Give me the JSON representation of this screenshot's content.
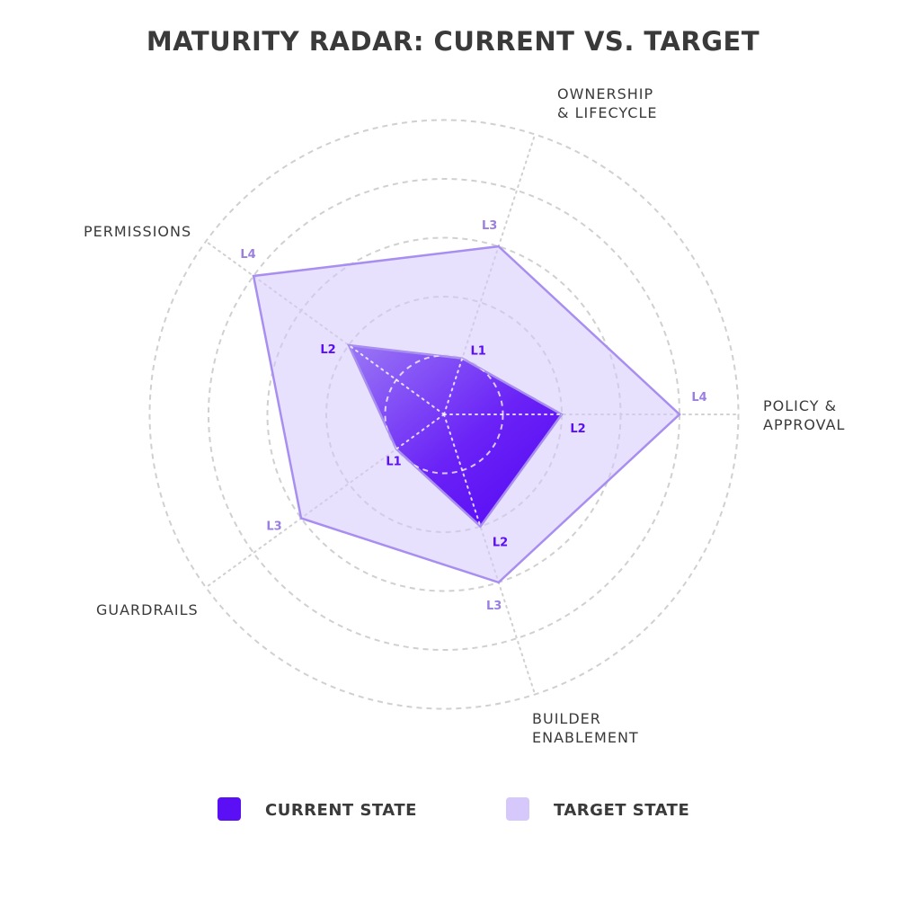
{
  "chart_data": {
    "type": "radar",
    "title": "MATURITY RADAR: CURRENT VS. TARGET",
    "axes": [
      {
        "label_lines": [
          "OWNERSHIP",
          "& LIFECYCLE"
        ]
      },
      {
        "label_lines": [
          "POLICY &",
          "APPROVAL"
        ]
      },
      {
        "label_lines": [
          "BUILDER",
          "ENABLEMENT"
        ]
      },
      {
        "label_lines": [
          "GUARDRAILS"
        ]
      },
      {
        "label_lines": [
          "PERMISSIONS"
        ]
      }
    ],
    "range": [
      0,
      5
    ],
    "grid_levels": [
      1,
      2,
      3,
      4,
      5
    ],
    "series": [
      {
        "name": "TARGET STATE",
        "values": [
          3,
          4,
          3,
          3,
          4
        ],
        "labels": [
          "L3",
          "L4",
          "L3",
          "L3",
          "L4"
        ],
        "color": "#d6c8fb",
        "stroke": "#a88ef0",
        "label_color": "#9a7fe0"
      },
      {
        "name": "CURRENT STATE",
        "values": [
          1,
          2,
          2,
          1,
          2
        ],
        "labels": [
          "L1",
          "L2",
          "L2",
          "L1",
          "L2"
        ],
        "color": "#5a0ff5",
        "stroke": "#a88ef0",
        "label_color": "#5a0ff5"
      }
    ],
    "legend": {
      "position": "bottom",
      "items": [
        {
          "label": "CURRENT STATE",
          "color": "#5a0ff5"
        },
        {
          "label": "TARGET STATE",
          "color": "#d6c8fb"
        }
      ]
    },
    "grid": true
  }
}
